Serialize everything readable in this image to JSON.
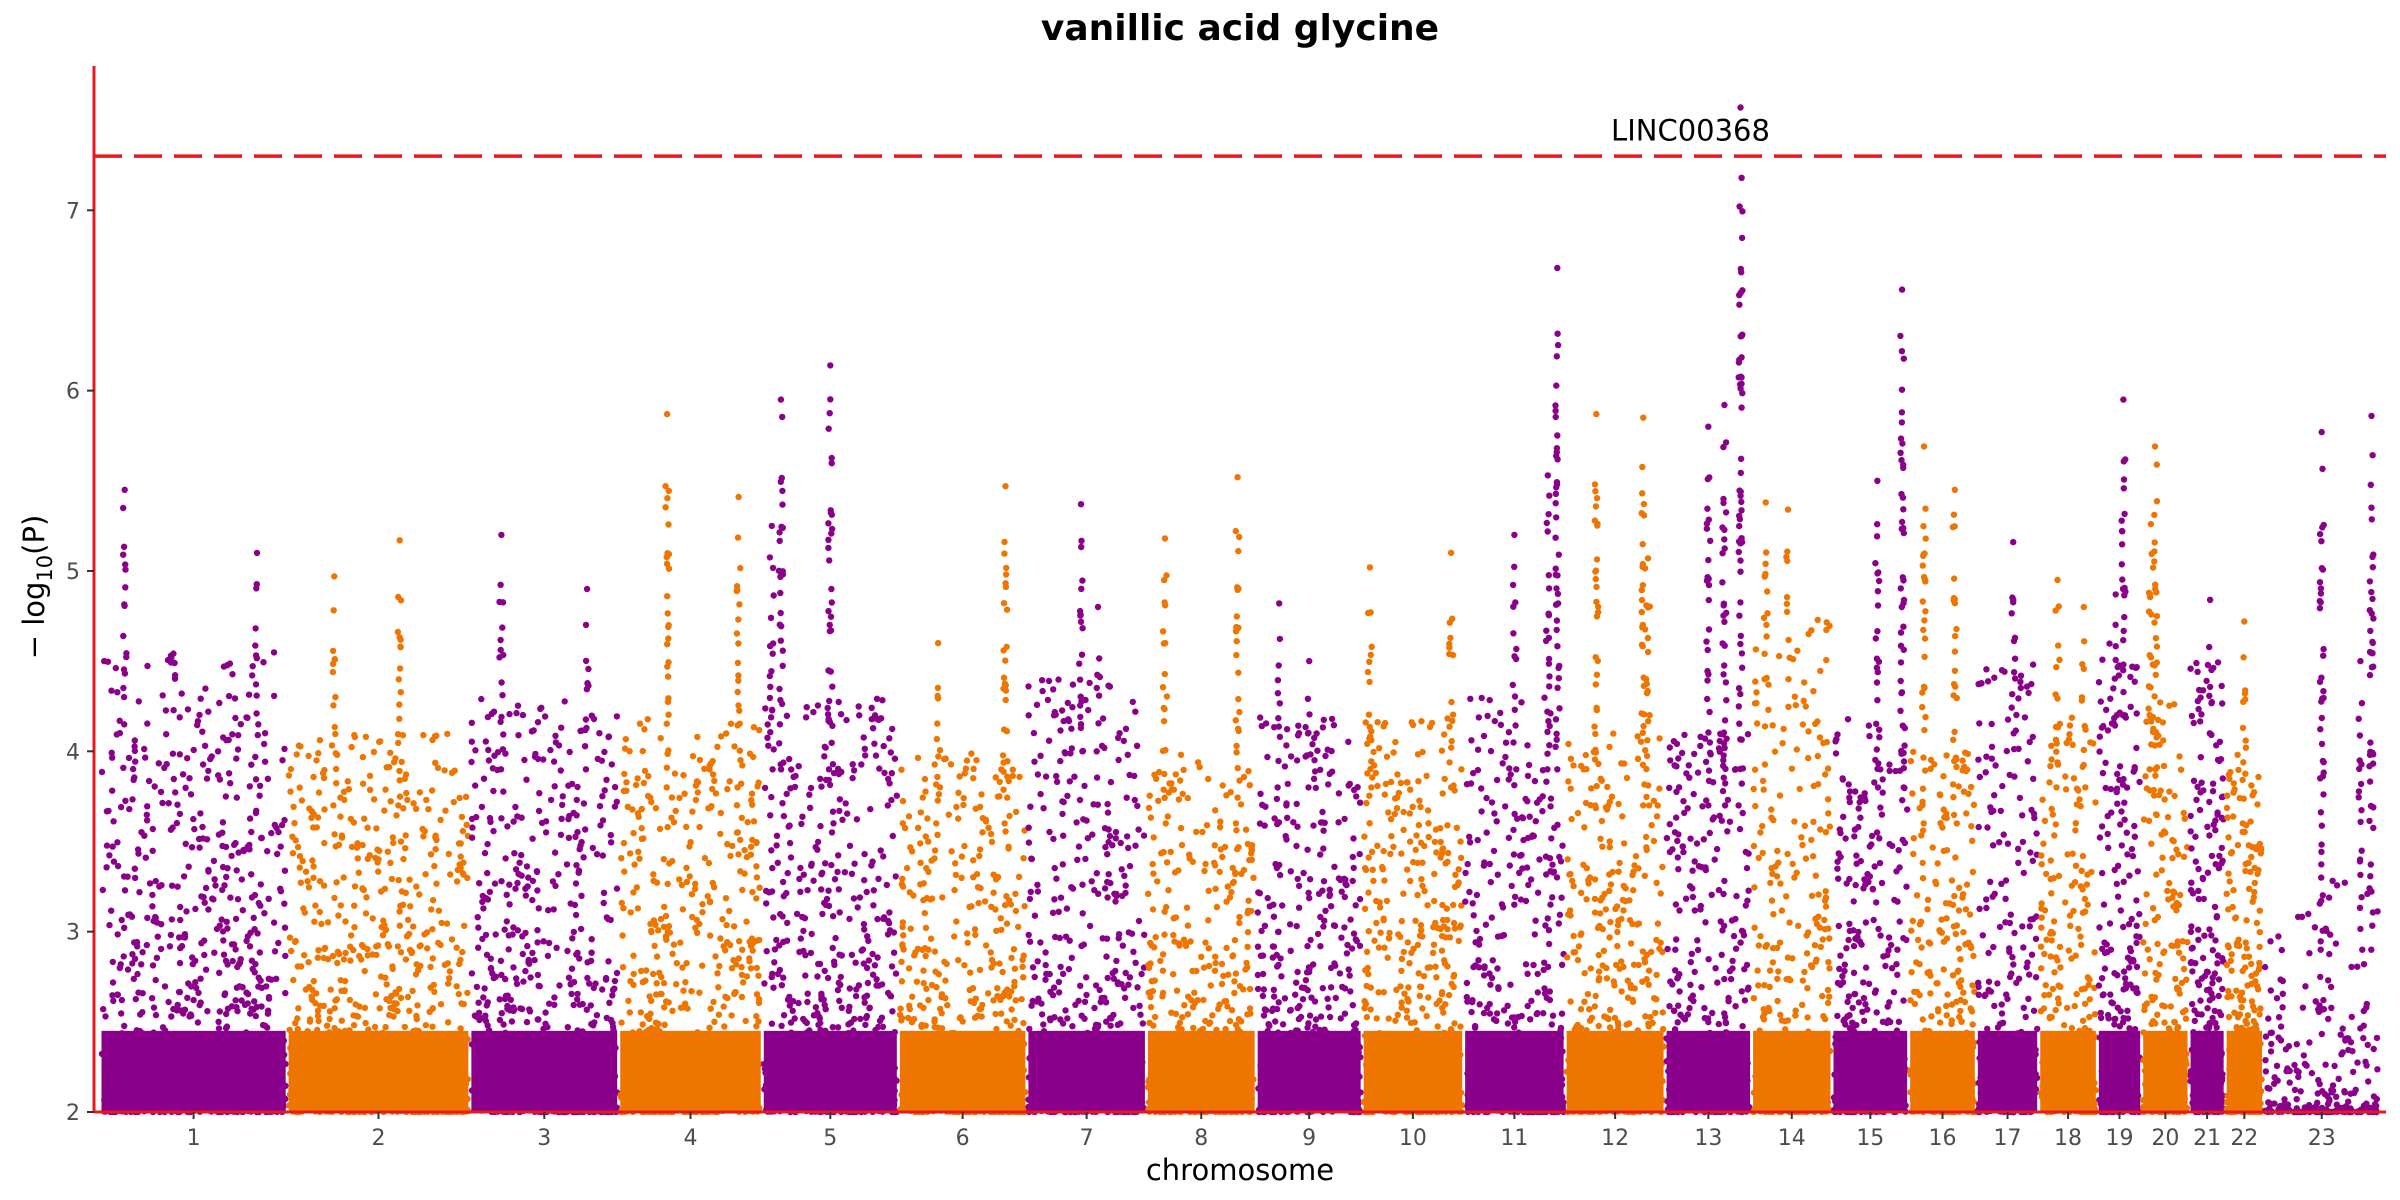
{
  "chart_data": {
    "type": "scatter",
    "subtype": "manhattan",
    "title": "vanillic acid glycine",
    "xlabel": "chromosome",
    "ylabel_parts": {
      "prefix": "− log",
      "subscript": "10",
      "suffix": "(P)"
    },
    "ylim": [
      2,
      7.8
    ],
    "yticks": [
      2,
      3,
      4,
      5,
      6,
      7
    ],
    "significance_threshold": 7.3,
    "threshold_color": "#e41a1c",
    "colors": {
      "odd": "#8b008b",
      "even": "#ee7600"
    },
    "grid": false,
    "chromosomes": [
      {
        "label": "1",
        "max": 4.55,
        "peaks": [
          [
            0.85,
            5.1
          ],
          [
            0.12,
            5.45
          ]
        ]
      },
      {
        "label": "2",
        "max": 4.1,
        "peaks": [
          [
            0.62,
            5.17
          ],
          [
            0.25,
            4.97
          ]
        ]
      },
      {
        "label": "3",
        "max": 4.3,
        "peaks": [
          [
            0.2,
            5.2
          ],
          [
            0.8,
            4.9
          ]
        ]
      },
      {
        "label": "4",
        "max": 4.2,
        "peaks": [
          [
            0.33,
            5.87
          ],
          [
            0.85,
            5.41
          ]
        ]
      },
      {
        "label": "5",
        "max": 4.3,
        "peaks": [
          [
            0.5,
            6.14
          ],
          [
            0.12,
            5.95
          ],
          [
            0.05,
            5.25
          ]
        ]
      },
      {
        "label": "6",
        "max": 4.0,
        "peaks": [
          [
            0.85,
            5.47
          ],
          [
            0.3,
            4.6
          ]
        ]
      },
      {
        "label": "7",
        "max": 4.4,
        "peaks": [
          [
            0.45,
            5.37
          ],
          [
            0.6,
            4.8
          ]
        ]
      },
      {
        "label": "8",
        "max": 4.0,
        "peaks": [
          [
            0.85,
            5.52
          ],
          [
            0.15,
            5.18
          ]
        ]
      },
      {
        "label": "9",
        "max": 4.2,
        "peaks": [
          [
            0.2,
            4.82
          ],
          [
            0.5,
            4.5
          ]
        ]
      },
      {
        "label": "10",
        "max": 4.2,
        "peaks": [
          [
            0.05,
            5.02
          ],
          [
            0.9,
            5.1
          ]
        ]
      },
      {
        "label": "11",
        "max": 4.3,
        "peaks": [
          [
            0.95,
            6.68
          ],
          [
            0.85,
            5.53
          ],
          [
            0.5,
            5.2
          ]
        ]
      },
      {
        "label": "12",
        "max": 4.1,
        "peaks": [
          [
            0.3,
            5.87
          ],
          [
            0.8,
            5.85
          ],
          [
            0.85,
            5.07
          ]
        ]
      },
      {
        "label": "13",
        "max": 4.1,
        "peaks": [
          [
            0.9,
            7.57
          ],
          [
            0.7,
            5.92
          ],
          [
            0.5,
            5.8
          ]
        ]
      },
      {
        "label": "14",
        "max": 4.8,
        "peaks": [
          [
            0.45,
            5.34
          ],
          [
            0.15,
            5.38
          ]
        ]
      },
      {
        "label": "15",
        "max": 4.2,
        "peaks": [
          [
            0.95,
            6.56
          ],
          [
            0.6,
            5.5
          ]
        ]
      },
      {
        "label": "16",
        "max": 4.0,
        "peaks": [
          [
            0.2,
            5.69
          ],
          [
            0.7,
            5.45
          ]
        ]
      },
      {
        "label": "17",
        "max": 4.5,
        "peaks": [
          [
            0.6,
            5.16
          ]
        ]
      },
      {
        "label": "18",
        "max": 4.2,
        "peaks": [
          [
            0.3,
            4.95
          ],
          [
            0.8,
            4.8
          ]
        ]
      },
      {
        "label": "19",
        "max": 4.6,
        "peaks": [
          [
            0.6,
            5.95
          ],
          [
            0.4,
            4.87
          ]
        ]
      },
      {
        "label": "20",
        "max": 4.3,
        "peaks": [
          [
            0.25,
            5.69
          ],
          [
            0.15,
            5.26
          ]
        ]
      },
      {
        "label": "21",
        "max": 4.5,
        "peaks": [
          [
            0.6,
            4.84
          ]
        ]
      },
      {
        "label": "22",
        "max": 4.0,
        "peaks": [
          [
            0.5,
            4.72
          ]
        ]
      },
      {
        "label": "23",
        "max": 3.3,
        "peaks": [
          [
            0.5,
            5.77
          ],
          [
            0.95,
            5.86
          ],
          [
            0.85,
            4.5
          ]
        ]
      }
    ],
    "annotations": [
      {
        "label": "LINC00368",
        "chromosome": "13",
        "y": 7.57
      }
    ]
  }
}
